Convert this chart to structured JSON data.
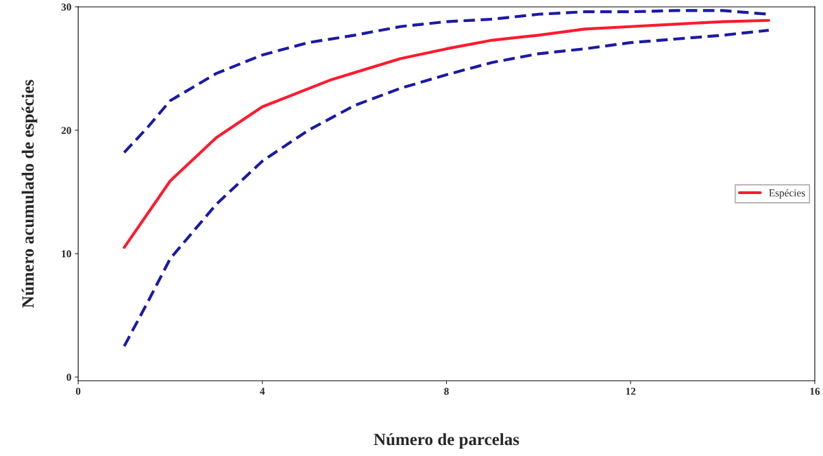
{
  "chart_data": {
    "type": "line",
    "xlabel": "Número de parcelas",
    "ylabel": "Número acumulado de espécies",
    "xlim": [
      0,
      16
    ],
    "xticks": [
      0,
      4,
      8,
      12,
      16
    ],
    "ylim": [
      -0.3,
      30
    ],
    "yticks": [
      0,
      10,
      20,
      30
    ],
    "grid": false,
    "legend": "right",
    "line_style": "solid",
    "marker": "none",
    "series": [
      {
        "name": "Espécies",
        "color": "#ff1a2e",
        "x": [
          1,
          2,
          3,
          4,
          5.5,
          7,
          8,
          9,
          10,
          11,
          12,
          13,
          14,
          15
        ],
        "values": [
          10.5,
          15.9,
          19.4,
          21.9,
          24.1,
          25.8,
          26.6,
          27.3,
          27.7,
          28.2,
          28.4,
          28.6,
          28.8,
          28.9
        ]
      },
      {
        "color": "#1a1aa6",
        "line_style": "dashed",
        "x": [
          1,
          1.5,
          2,
          3,
          4,
          5,
          6,
          7,
          8,
          9,
          10,
          11,
          12,
          13,
          14,
          15
        ],
        "values": [
          18.2,
          20.2,
          22.4,
          24.6,
          26.1,
          27.1,
          27.7,
          28.4,
          28.8,
          29.0,
          29.4,
          29.6,
          29.6,
          29.7,
          29.7,
          29.4
        ]
      },
      {
        "color": "#1a1aa6",
        "line_style": "dashed",
        "x": [
          1,
          1.5,
          2,
          3,
          4,
          5,
          6,
          7,
          8,
          9,
          10,
          11,
          12,
          13,
          14,
          15
        ],
        "values": [
          2.5,
          6.0,
          9.6,
          14.0,
          17.5,
          20.0,
          22.0,
          23.4,
          24.5,
          25.5,
          26.2,
          26.6,
          27.1,
          27.4,
          27.7,
          28.1
        ]
      }
    ]
  }
}
